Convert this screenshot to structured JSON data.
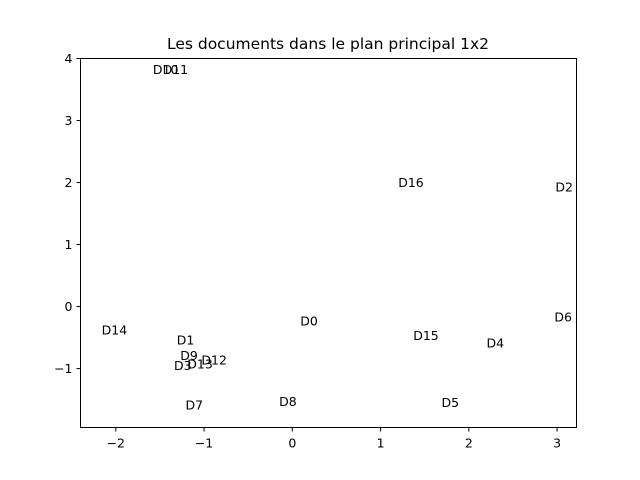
{
  "chart_data": {
    "type": "scatter",
    "title": "Les documents dans le plan principal 1x2",
    "xlabel": "",
    "ylabel": "",
    "xlim": [
      -2.4,
      3.22
    ],
    "ylim": [
      -1.95,
      4.0
    ],
    "x_ticks": [
      {
        "value": -2,
        "label": "−2"
      },
      {
        "value": -1,
        "label": "−1"
      },
      {
        "value": 0,
        "label": "0"
      },
      {
        "value": 1,
        "label": "1"
      },
      {
        "value": 2,
        "label": "2"
      },
      {
        "value": 3,
        "label": "3"
      }
    ],
    "y_ticks": [
      {
        "value": -1,
        "label": "−1"
      },
      {
        "value": 0,
        "label": "0"
      },
      {
        "value": 1,
        "label": "1"
      },
      {
        "value": 2,
        "label": "2"
      },
      {
        "value": 3,
        "label": "3"
      },
      {
        "value": 4,
        "label": "4"
      }
    ],
    "grid": false,
    "points": [
      {
        "label": "D0",
        "x": 0.09,
        "y": -0.23
      },
      {
        "label": "D1",
        "x": -1.31,
        "y": -0.54
      },
      {
        "label": "D2",
        "x": 2.98,
        "y": 1.93
      },
      {
        "label": "D3",
        "x": -1.34,
        "y": -0.95
      },
      {
        "label": "D4",
        "x": 2.2,
        "y": -0.59
      },
      {
        "label": "D5",
        "x": 1.69,
        "y": -1.55
      },
      {
        "label": "D6",
        "x": 2.97,
        "y": -0.17
      },
      {
        "label": "D7",
        "x": -1.21,
        "y": -1.59
      },
      {
        "label": "D8",
        "x": -0.15,
        "y": -1.53
      },
      {
        "label": "D9",
        "x": -1.27,
        "y": -0.79
      },
      {
        "label": "D10",
        "x": -1.58,
        "y": 3.82
      },
      {
        "label": "D11",
        "x": -1.47,
        "y": 3.82
      },
      {
        "label": "D12",
        "x": -1.03,
        "y": -0.86
      },
      {
        "label": "D13",
        "x": -1.19,
        "y": -0.93
      },
      {
        "label": "D14",
        "x": -2.16,
        "y": -0.38
      },
      {
        "label": "D15",
        "x": 1.37,
        "y": -0.47
      },
      {
        "label": "D16",
        "x": 1.2,
        "y": 2.0
      }
    ]
  }
}
